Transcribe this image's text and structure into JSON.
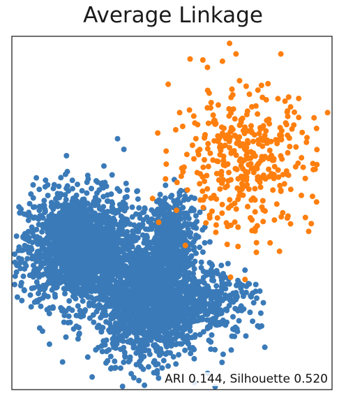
{
  "chart_data": {
    "type": "scatter",
    "title": "Average Linkage",
    "annotation": "ARI 0.144, Silhouette 0.520",
    "xlabel": "",
    "ylabel": "",
    "xlim": [
      0,
      100
    ],
    "ylim": [
      0,
      100
    ],
    "ticks": "none",
    "grid": false,
    "legend": "none",
    "series": [
      {
        "color": "#3a7ab8",
        "clusters": [
          {
            "center": [
              21,
              40
            ],
            "spread": [
              9,
              8
            ],
            "count": 1700
          },
          {
            "center": [
              43,
              25
            ],
            "spread": [
              8,
              8
            ],
            "count": 1700
          },
          {
            "center": [
              50,
              43
            ],
            "spread": [
              4,
              6
            ],
            "count": 400
          },
          {
            "center": [
              62,
              26
            ],
            "spread": [
              7,
              5
            ],
            "count": 250
          }
        ],
        "extra_points": [
          [
            33,
            71
          ],
          [
            35,
            68
          ],
          [
            28,
            58
          ],
          [
            54,
            28
          ],
          [
            64,
            19
          ],
          [
            66,
            10
          ],
          [
            79,
            12
          ],
          [
            78,
            18
          ],
          [
            57,
            2
          ]
        ]
      },
      {
        "color": "#ff7f0e",
        "clusters": [
          {
            "center": [
              72,
              65
            ],
            "spread": [
              11,
              10
            ],
            "count": 380
          }
        ],
        "extra_points": [
          [
            68,
            98
          ],
          [
            70,
            95
          ],
          [
            84,
            95
          ],
          [
            92,
            70
          ],
          [
            94,
            64
          ],
          [
            75,
            45
          ],
          [
            82,
            48
          ]
        ]
      }
    ]
  }
}
